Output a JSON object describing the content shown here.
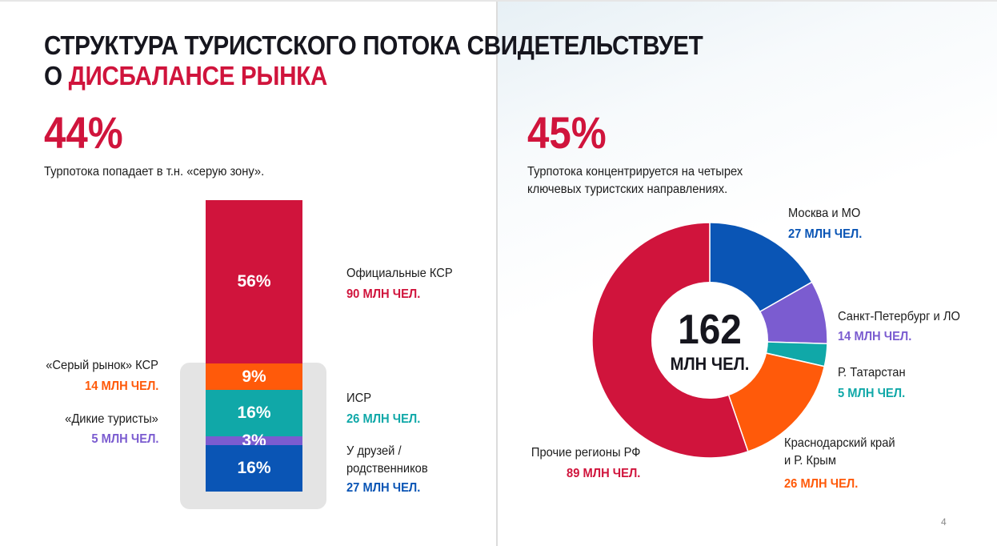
{
  "title": {
    "line1": "Структура туристского потока свидетельствует",
    "line2_prefix": "о ",
    "line2_accent": "дисбалансе рынка"
  },
  "left": {
    "percent": "44%",
    "description": "Турпотока попадает в т.н. «серую зону».",
    "segments": [
      {
        "pct_label": "56%",
        "share": 56,
        "color": "#d0143c"
      },
      {
        "pct_label": "9%",
        "share": 9,
        "color": "#ff5a0a"
      },
      {
        "pct_label": "16%",
        "share": 16,
        "color": "#10a8a8"
      },
      {
        "pct_label": "3%",
        "share": 3,
        "color": "#7b5cd0"
      },
      {
        "pct_label": "16%",
        "share": 16,
        "color": "#0a55b5"
      }
    ],
    "labels": {
      "official": {
        "name": "Официальные КСР",
        "value": "90 МЛН ЧЕЛ."
      },
      "grey": {
        "name": "«Серый рынок» КСР",
        "value": "14 МЛН ЧЕЛ."
      },
      "wild": {
        "name": "«Дикие туристы»",
        "value": "5 МЛН ЧЕЛ."
      },
      "isr": {
        "name": "ИСР",
        "value": "26 МЛН ЧЕЛ."
      },
      "friends": {
        "name_line1": "У друзей /",
        "name_line2": "родственников",
        "value": "27 МЛН ЧЕЛ."
      }
    }
  },
  "right": {
    "percent": "45%",
    "description_line1": "Турпотока концентрируется на четырех",
    "description_line2": "ключевых туристских направлениях.",
    "center_value": "162",
    "center_unit": "МЛН ЧЕЛ.",
    "labels": {
      "moscow": {
        "name": "Москва и МО",
        "value": "27 МЛН ЧЕЛ."
      },
      "spb": {
        "name": "Санкт-Петербург и ЛО",
        "value": "14 МЛН ЧЕЛ."
      },
      "tatarstan": {
        "name": "Р. Татарстан",
        "value": "5 МЛН ЧЕЛ."
      },
      "krasnodar": {
        "name_line1": "Краснодарский край",
        "name_line2": "и Р. Крым",
        "value": "26 МЛН ЧЕЛ."
      },
      "other": {
        "name": "Прочие регионы РФ",
        "value": "89 МЛН ЧЕЛ."
      }
    }
  },
  "page_number": "4",
  "chart_data": [
    {
      "type": "bar",
      "subtype": "stacked-100",
      "categories": [
        "Официальные КСР",
        "«Серый рынок» КСР",
        "ИСР",
        "«Дикие туристы»",
        "У друзей / родственников"
      ],
      "values": [
        56,
        9,
        16,
        3,
        16
      ],
      "unit": "%",
      "people_mln": [
        90,
        14,
        26,
        5,
        27
      ],
      "colors": [
        "#d0143c",
        "#ff5a0a",
        "#10a8a8",
        "#7b5cd0",
        "#0a55b5"
      ]
    },
    {
      "type": "pie",
      "subtype": "donut",
      "total": 162,
      "categories": [
        "Москва и МО",
        "Санкт-Петербург и ЛО",
        "Р. Татарстан",
        "Краснодарский край и Р. Крым",
        "Прочие регионы РФ"
      ],
      "values": [
        27,
        14,
        5,
        26,
        89
      ],
      "unit": "млн чел.",
      "colors": [
        "#0a55b5",
        "#7b5cd0",
        "#10a8a8",
        "#ff5a0a",
        "#d0143c"
      ]
    }
  ]
}
